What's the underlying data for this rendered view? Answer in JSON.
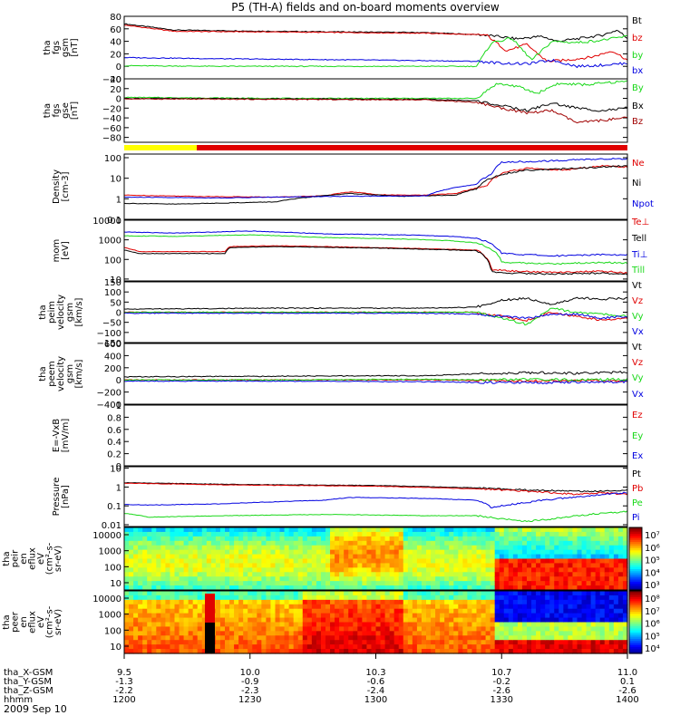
{
  "title": "P5 (TH-A) fields and on-board moments overview",
  "date_label": "2009 Sep 10",
  "colors": {
    "black": "#000000",
    "red": "#e00000",
    "dark_red": "#a00000",
    "green": "#18d818",
    "blue": "#0000e0",
    "yellow": "#ffff00"
  },
  "chart_data": [
    {
      "type": "line",
      "ylabel": [
        "tha",
        "fgs",
        "gsm",
        "[nT]"
      ],
      "ylim": [
        -20,
        80
      ],
      "ticks": [
        -20,
        0,
        20,
        40,
        60,
        80
      ],
      "x_range": [
        0,
        1
      ],
      "series": [
        {
          "name": "Bt",
          "color": "black",
          "x": [
            0,
            0.1,
            0.3,
            0.6,
            0.72,
            0.78,
            0.83,
            0.86,
            0.9,
            0.95,
            0.98,
            1.0
          ],
          "y": [
            68,
            58,
            56,
            54,
            50,
            44,
            48,
            40,
            44,
            50,
            58,
            45
          ]
        },
        {
          "name": "bz",
          "color": "red",
          "x": [
            0,
            0.1,
            0.3,
            0.6,
            0.72,
            0.76,
            0.8,
            0.84,
            0.88,
            0.93,
            0.97,
            1.0
          ],
          "y": [
            66,
            56,
            55,
            53,
            50,
            25,
            35,
            8,
            10,
            15,
            25,
            10
          ]
        },
        {
          "name": "by",
          "color": "green",
          "x": [
            0,
            0.2,
            0.5,
            0.7,
            0.73,
            0.77,
            0.81,
            0.85,
            0.9,
            0.95,
            1.0
          ],
          "y": [
            1,
            0,
            0,
            0,
            38,
            45,
            10,
            40,
            38,
            42,
            48
          ]
        },
        {
          "name": "bx",
          "color": "blue",
          "x": [
            0,
            0.2,
            0.5,
            0.7,
            0.75,
            0.8,
            0.85,
            0.9,
            0.95,
            1.0
          ],
          "y": [
            14,
            12,
            10,
            8,
            5,
            4,
            10,
            0,
            2,
            5
          ]
        }
      ]
    },
    {
      "type": "line",
      "ylabel": [
        "tha",
        "fgs",
        "gse",
        "[nT]"
      ],
      "ylim": [
        -90,
        40
      ],
      "ticks": [
        -80,
        -60,
        -40,
        -20,
        0,
        20,
        40
      ],
      "x_range": [
        0,
        1
      ],
      "series": [
        {
          "name": "By",
          "color": "green",
          "x": [
            0,
            0.3,
            0.6,
            0.7,
            0.74,
            0.78,
            0.82,
            0.86,
            0.92,
            0.96,
            1.0
          ],
          "y": [
            2,
            0,
            0,
            0,
            30,
            25,
            10,
            30,
            28,
            32,
            35
          ]
        },
        {
          "name": "Bx",
          "color": "black",
          "x": [
            0,
            0.3,
            0.6,
            0.7,
            0.75,
            0.8,
            0.85,
            0.9,
            0.95,
            1.0
          ],
          "y": [
            0,
            -1,
            -2,
            -5,
            -15,
            -25,
            -10,
            -20,
            -25,
            -20
          ]
        },
        {
          "name": "Bz",
          "color": "dark_red",
          "x": [
            0,
            0.3,
            0.6,
            0.7,
            0.75,
            0.8,
            0.85,
            0.9,
            0.95,
            1.0
          ],
          "y": [
            -1,
            -2,
            -3,
            -8,
            -20,
            -30,
            -25,
            -50,
            -45,
            -40
          ]
        }
      ]
    },
    {
      "type": "line",
      "ylabel": [
        "Density",
        "[cm-3]"
      ],
      "log": true,
      "ylim": [
        0.1,
        150
      ],
      "ticks": [
        0.1,
        1.0,
        10.0,
        100.0
      ],
      "x_range": [
        0,
        1
      ],
      "series": [
        {
          "name": "Ne",
          "color": "red",
          "x": [
            0,
            0.15,
            0.3,
            0.4,
            0.45,
            0.5,
            0.55,
            0.6,
            0.66,
            0.72,
            0.76,
            0.8,
            0.88,
            0.95,
            1.0
          ],
          "y": [
            1.5,
            1.3,
            1.2,
            1.4,
            2.2,
            1.6,
            1.5,
            1.5,
            1.8,
            4.0,
            20,
            30,
            25,
            40,
            35
          ]
        },
        {
          "name": "Ni",
          "color": "black",
          "x": [
            0,
            0.1,
            0.3,
            0.45,
            0.55,
            0.66,
            0.7,
            0.75,
            0.8,
            0.9,
            1.0
          ],
          "y": [
            0.6,
            0.55,
            0.7,
            1.8,
            1.3,
            1.5,
            3.0,
            15,
            25,
            30,
            40
          ]
        },
        {
          "name": "Npot",
          "color": "blue",
          "x": [
            0,
            0.2,
            0.4,
            0.6,
            0.7,
            0.73,
            0.75,
            0.85,
            0.9,
            0.95,
            1.0
          ],
          "y": [
            1.2,
            1.1,
            1.3,
            1.4,
            5.0,
            15,
            60,
            70,
            80,
            85,
            90
          ]
        }
      ]
    },
    {
      "type": "line",
      "ylabel": [
        "mom",
        "[eV]"
      ],
      "log": true,
      "ylim": [
        8,
        10000
      ],
      "ticks": [
        10,
        100,
        1000,
        10000
      ],
      "x_range": [
        0,
        1
      ],
      "series": [
        {
          "name": "Te⊥",
          "color": "red",
          "x": [
            0,
            0.03,
            0.1,
            0.2,
            0.21,
            0.3,
            0.5,
            0.7,
            0.73,
            0.78,
            0.85,
            0.95,
            1.0
          ],
          "y": [
            400,
            250,
            250,
            250,
            450,
            500,
            400,
            300,
            30,
            25,
            22,
            25,
            20
          ]
        },
        {
          "name": "Tell",
          "color": "black",
          "x": [
            0,
            0.03,
            0.1,
            0.2,
            0.21,
            0.3,
            0.5,
            0.7,
            0.73,
            0.78,
            0.85,
            0.95,
            1.0
          ],
          "y": [
            300,
            200,
            200,
            200,
            400,
            450,
            380,
            280,
            22,
            20,
            18,
            20,
            18
          ]
        },
        {
          "name": "Ti⊥",
          "color": "blue",
          "x": [
            0,
            0.1,
            0.25,
            0.4,
            0.55,
            0.65,
            0.7,
            0.75,
            0.85,
            0.95,
            1.0
          ],
          "y": [
            2500,
            2200,
            2800,
            2000,
            1800,
            1500,
            1200,
            200,
            150,
            180,
            170
          ]
        },
        {
          "name": "Till",
          "color": "green",
          "x": [
            0,
            0.1,
            0.25,
            0.4,
            0.55,
            0.65,
            0.7,
            0.75,
            0.85,
            0.95,
            1.0
          ],
          "y": [
            1600,
            1500,
            1800,
            1300,
            1100,
            900,
            700,
            70,
            60,
            70,
            65
          ]
        }
      ]
    },
    {
      "type": "line",
      "ylabel": [
        "tha",
        "peim",
        "velocity",
        "gsm",
        "[km/s]"
      ],
      "ylim": [
        -150,
        150
      ],
      "ticks": [
        -150,
        -100,
        -50,
        0,
        50,
        100,
        150
      ],
      "x_range": [
        0,
        1
      ],
      "series": [
        {
          "name": "Vt",
          "color": "black",
          "x": [
            0,
            0.3,
            0.6,
            0.7,
            0.75,
            0.8,
            0.85,
            0.9,
            0.95,
            1.0
          ],
          "y": [
            15,
            20,
            20,
            25,
            60,
            70,
            40,
            70,
            65,
            70
          ]
        },
        {
          "name": "Vz",
          "color": "red",
          "x": [
            0,
            0.3,
            0.6,
            0.7,
            0.75,
            0.8,
            0.85,
            0.9,
            0.95,
            1.0
          ],
          "y": [
            0,
            0,
            0,
            0,
            -20,
            -40,
            0,
            -20,
            -40,
            -30
          ]
        },
        {
          "name": "Vy",
          "color": "green",
          "x": [
            0,
            0.3,
            0.6,
            0.7,
            0.75,
            0.8,
            0.85,
            0.9,
            0.95,
            1.0
          ],
          "y": [
            0,
            0,
            0,
            0,
            -30,
            -60,
            20,
            0,
            -10,
            -20
          ]
        },
        {
          "name": "Vx",
          "color": "blue",
          "x": [
            0,
            0.3,
            0.6,
            0.7,
            0.75,
            0.8,
            0.85,
            0.9,
            0.95,
            1.0
          ],
          "y": [
            -5,
            -5,
            -5,
            -10,
            -20,
            -30,
            -10,
            -10,
            -30,
            -20
          ]
        }
      ]
    },
    {
      "type": "line",
      "ylabel": [
        "tha",
        "peem",
        "velocity",
        "gsm",
        "[km/s]"
      ],
      "ylim": [
        -400,
        600
      ],
      "ticks": [
        -400,
        -200,
        0,
        200,
        400,
        600
      ],
      "x_range": [
        0,
        1
      ],
      "series": [
        {
          "name": "Vt",
          "color": "black",
          "x": [
            0,
            0.3,
            0.6,
            0.7,
            0.8,
            0.9,
            1.0
          ],
          "y": [
            50,
            60,
            70,
            100,
            120,
            110,
            130
          ]
        },
        {
          "name": "Vz",
          "color": "red",
          "x": [
            0,
            0.3,
            0.6,
            0.7,
            0.8,
            0.9,
            1.0
          ],
          "y": [
            0,
            0,
            0,
            -10,
            -20,
            -10,
            -20
          ]
        },
        {
          "name": "Vy",
          "color": "green",
          "x": [
            0,
            0.3,
            0.6,
            0.7,
            0.8,
            0.9,
            1.0
          ],
          "y": [
            0,
            0,
            10,
            0,
            10,
            0,
            10
          ]
        },
        {
          "name": "Vx",
          "color": "blue",
          "x": [
            0,
            0.3,
            0.6,
            0.7,
            0.8,
            0.9,
            1.0
          ],
          "y": [
            -20,
            -20,
            -30,
            -40,
            -50,
            -40,
            -30
          ]
        }
      ]
    },
    {
      "type": "line",
      "ylabel": [
        "E=-VxB",
        "[mV/m]"
      ],
      "ylim": [
        0.0,
        1.0
      ],
      "ticks": [
        0.0,
        0.2,
        0.4,
        0.6,
        0.8,
        1.0
      ],
      "x_range": [
        0,
        1
      ],
      "series": [
        {
          "name": "Ez",
          "color": "red",
          "x": [],
          "y": []
        },
        {
          "name": "Ey",
          "color": "green",
          "x": [],
          "y": []
        },
        {
          "name": "Ex",
          "color": "blue",
          "x": [],
          "y": []
        }
      ]
    },
    {
      "type": "line",
      "ylabel": [
        "Pressure",
        "[nPa]"
      ],
      "log": true,
      "ylim": [
        0.008,
        12
      ],
      "ticks": [
        0.01,
        0.1,
        1.0,
        10.0
      ],
      "x_range": [
        0,
        1
      ],
      "series": [
        {
          "name": "Pt",
          "color": "black",
          "x": [
            0,
            0.2,
            0.5,
            0.7,
            0.8,
            0.9,
            0.95,
            1.0
          ],
          "y": [
            1.7,
            1.4,
            1.2,
            0.9,
            0.7,
            0.6,
            0.6,
            0.7
          ]
        },
        {
          "name": "Pb",
          "color": "red",
          "x": [
            0,
            0.2,
            0.5,
            0.7,
            0.8,
            0.9,
            0.95,
            1.0
          ],
          "y": [
            1.6,
            1.3,
            1.1,
            0.8,
            0.6,
            0.4,
            0.5,
            0.4
          ]
        },
        {
          "name": "Pe",
          "color": "green",
          "x": [
            0,
            0.05,
            0.2,
            0.4,
            0.6,
            0.7,
            0.75,
            0.8,
            0.85,
            0.9,
            0.95,
            1.0
          ],
          "y": [
            0.04,
            0.025,
            0.03,
            0.035,
            0.03,
            0.03,
            0.02,
            0.015,
            0.02,
            0.03,
            0.04,
            0.05
          ]
        },
        {
          "name": "Pi",
          "color": "blue",
          "x": [
            0,
            0.05,
            0.2,
            0.4,
            0.45,
            0.6,
            0.7,
            0.73,
            0.8,
            0.9,
            0.95,
            1.0
          ],
          "y": [
            0.12,
            0.11,
            0.13,
            0.2,
            0.28,
            0.25,
            0.2,
            0.08,
            0.15,
            0.3,
            0.4,
            0.5
          ]
        }
      ]
    },
    {
      "type": "heatmap",
      "ylabel": [
        "tha",
        "peir",
        "en",
        "eflux",
        "eV",
        "(cm²-s-",
        "sr-eV)"
      ],
      "ytick_labels": [
        "10000",
        "1000",
        "100",
        "10"
      ],
      "cbar_labels": [
        "10⁷",
        "10⁶",
        "10⁵",
        "10⁴",
        "10³"
      ]
    },
    {
      "type": "heatmap",
      "ylabel": [
        "tha",
        "peer",
        "en",
        "eflux",
        "eV",
        "(cm²-s-",
        "sr-eV)"
      ],
      "ytick_labels": [
        "10000",
        "1000",
        "100",
        "10"
      ],
      "cbar_labels": [
        "10⁸",
        "10⁷",
        "10⁶",
        "10⁵",
        "10⁴"
      ]
    }
  ],
  "x_axis": {
    "row_labels": [
      "tha_X-GSM",
      "tha_Y-GSM",
      "tha_Z-GSM",
      "hhmm"
    ],
    "columns": [
      {
        "values": [
          "9.5",
          "-1.3",
          "-2.2",
          "1200"
        ]
      },
      {
        "values": [
          "10.0",
          "-0.9",
          "-2.3",
          "1230"
        ]
      },
      {
        "values": [
          "10.3",
          "-0.6",
          "-2.4",
          "1300"
        ]
      },
      {
        "values": [
          "10.7",
          "-0.2",
          "-2.6",
          "1330"
        ]
      },
      {
        "values": [
          "11.0",
          "0.1",
          "-2.6",
          "1400"
        ]
      }
    ]
  }
}
